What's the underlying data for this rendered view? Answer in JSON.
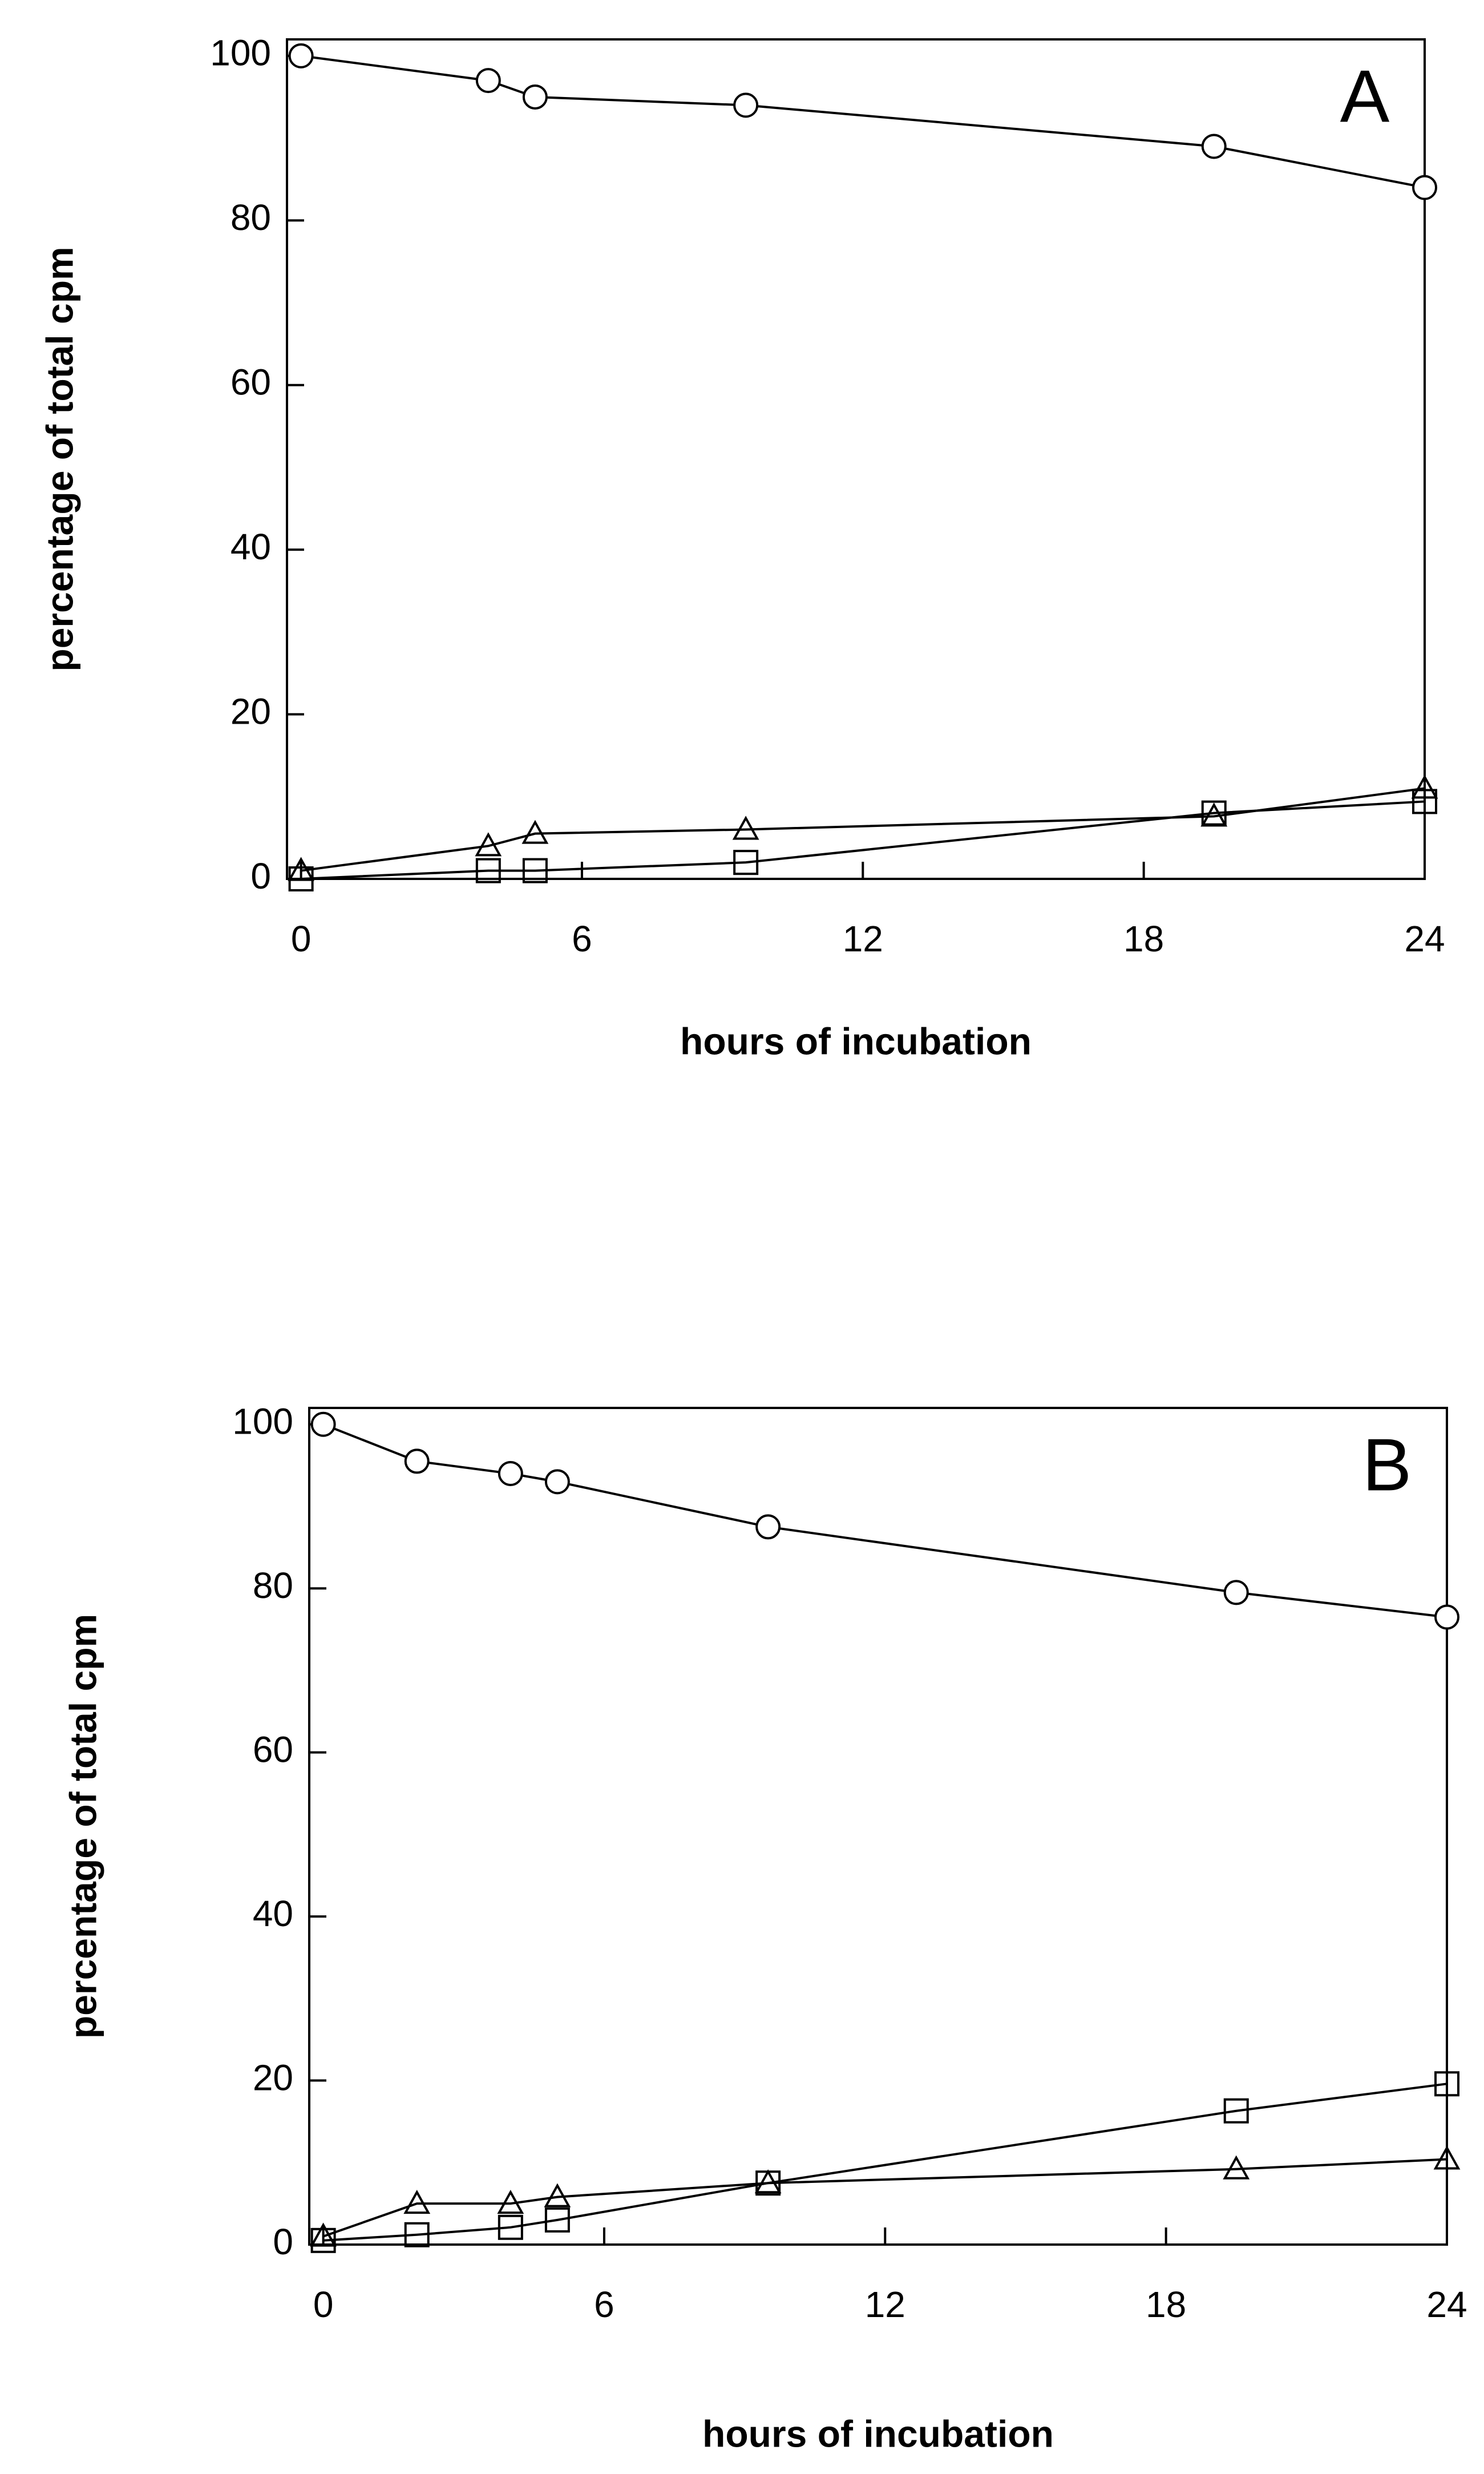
{
  "chart_data": [
    {
      "type": "line",
      "panel_label": "A",
      "x_label": "hours of incubation",
      "y_label": "percentage of total cpm",
      "x": [
        0,
        4,
        5,
        9.5,
        19.5,
        24
      ],
      "series": [
        {
          "marker": "circle",
          "color": "#000000",
          "values": [
            100,
            97,
            95,
            94,
            89,
            84
          ]
        },
        {
          "marker": "triangle",
          "color": "#000000",
          "values": [
            1,
            4,
            5.5,
            6,
            7.6,
            11
          ]
        },
        {
          "marker": "square",
          "color": "#000000",
          "values": [
            0,
            1,
            1,
            2,
            8,
            9.4
          ]
        }
      ],
      "xlim": [
        -0.3,
        24
      ],
      "ylim": [
        0,
        102
      ],
      "xticks": [
        0,
        6,
        12,
        18,
        24
      ],
      "yticks": [
        0,
        20,
        40,
        60,
        80,
        100
      ]
    },
    {
      "type": "line",
      "panel_label": "B",
      "x_label": "hours of incubation",
      "y_label": "percentage of total cpm",
      "x": [
        0,
        2,
        4,
        5,
        9.5,
        19.5,
        24
      ],
      "series": [
        {
          "marker": "circle",
          "color": "#000000",
          "values": [
            100,
            95.5,
            94,
            93,
            87.5,
            79.5,
            76.5
          ]
        },
        {
          "marker": "triangle",
          "color": "#000000",
          "values": [
            1,
            5,
            5,
            5.8,
            7.5,
            9.2,
            10.4
          ]
        },
        {
          "marker": "square",
          "color": "#000000",
          "values": [
            0.5,
            1.2,
            2.1,
            3,
            7.5,
            16.3,
            19.6
          ]
        }
      ],
      "xlim": [
        -0.3,
        24
      ],
      "ylim": [
        0,
        102
      ],
      "xticks": [
        0,
        6,
        12,
        18,
        24
      ],
      "yticks": [
        0,
        20,
        40,
        60,
        80,
        100
      ]
    }
  ]
}
